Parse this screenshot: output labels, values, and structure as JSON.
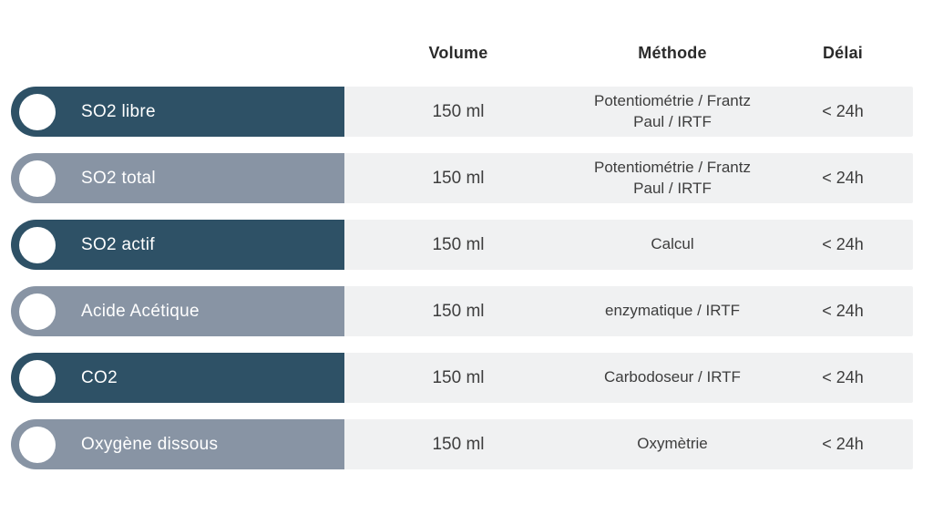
{
  "colors": {
    "dark": "#2e5166",
    "gray": "#8894a4",
    "rowbg": "#f0f1f2",
    "text": "#3d3d3d",
    "headertext": "#2b2b2b"
  },
  "header": {
    "volume": "Volume",
    "method": "Méthode",
    "delay": "Délai"
  },
  "rows": [
    {
      "label": "SO2 libre",
      "tone": "dark",
      "volume": "150 ml",
      "method": "Potentiométrie / Frantz Paul / IRTF",
      "delay": "< 24h"
    },
    {
      "label": "SO2 total",
      "tone": "gray",
      "volume": "150 ml",
      "method": "Potentiométrie / Frantz Paul / IRTF",
      "delay": "< 24h"
    },
    {
      "label": "SO2 actif",
      "tone": "dark",
      "volume": "150 ml",
      "method": "Calcul",
      "delay": "< 24h"
    },
    {
      "label": "Acide Acétique",
      "tone": "gray",
      "volume": "150 ml",
      "method": "enzymatique / IRTF",
      "delay": "< 24h"
    },
    {
      "label": "CO2",
      "tone": "dark",
      "volume": "150 ml",
      "method": "Carbodoseur / IRTF",
      "delay": "< 24h"
    },
    {
      "label": "Oxygène dissous",
      "tone": "gray",
      "volume": "150 ml",
      "method": "Oxymètrie",
      "delay": "< 24h"
    }
  ]
}
